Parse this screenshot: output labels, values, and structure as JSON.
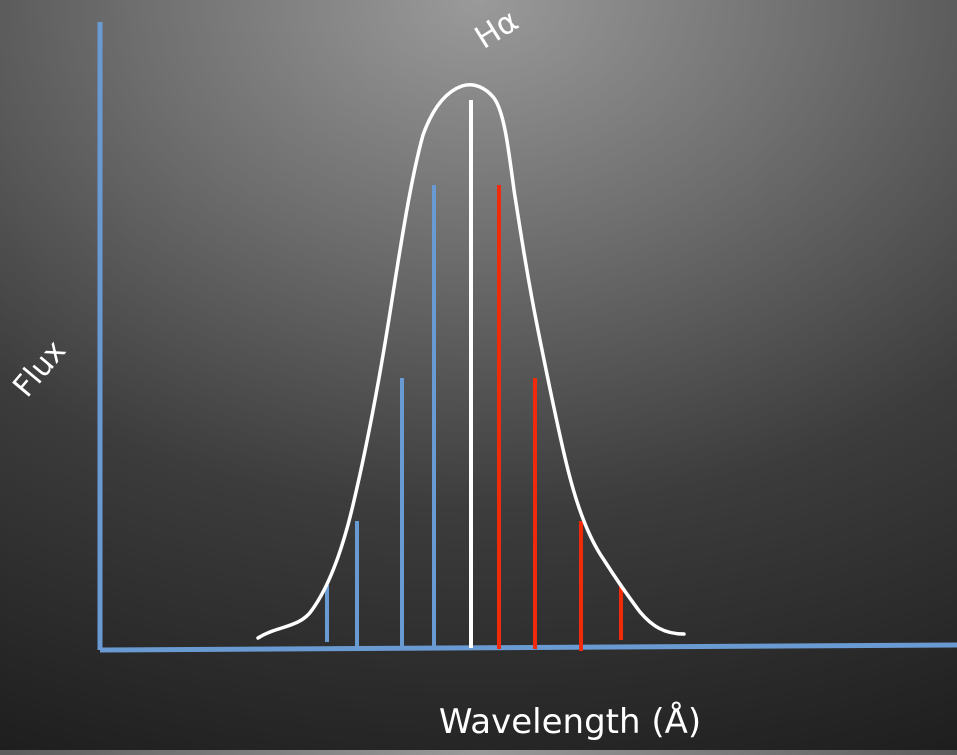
{
  "labels": {
    "line_name": "Hα",
    "y_axis": "Flux",
    "x_axis": "Wavelength (Å)"
  },
  "colors": {
    "axis": "#6a9ad2",
    "blueshift": "#6a9ad2",
    "center": "#ffffff",
    "redshift": "#f02a0a",
    "profile": "#ffffff"
  }
}
